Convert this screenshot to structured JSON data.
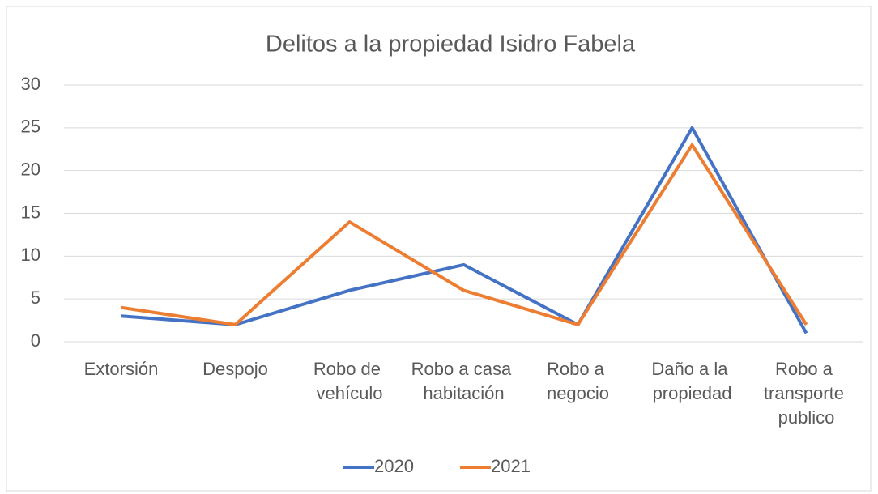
{
  "chart_data": {
    "type": "line",
    "title": "Delitos a la propiedad Isidro Fabela",
    "categories": [
      "Extorsión",
      "Despojo",
      "Robo de vehículo",
      "Robo a casa habitación",
      "Robo a negocio",
      "Daño a la propiedad",
      "Robo a transporte publico"
    ],
    "series": [
      {
        "name": "2020",
        "color": "#4472c4",
        "values": [
          3,
          2,
          6,
          9,
          2,
          25,
          1
        ]
      },
      {
        "name": "2021",
        "color": "#ed7d31",
        "values": [
          4,
          2,
          14,
          6,
          2,
          23,
          2
        ]
      }
    ],
    "ylim": [
      0,
      30
    ],
    "yticks": [
      0,
      5,
      10,
      15,
      20,
      25,
      30
    ],
    "grid": true,
    "legend": "bottom"
  }
}
